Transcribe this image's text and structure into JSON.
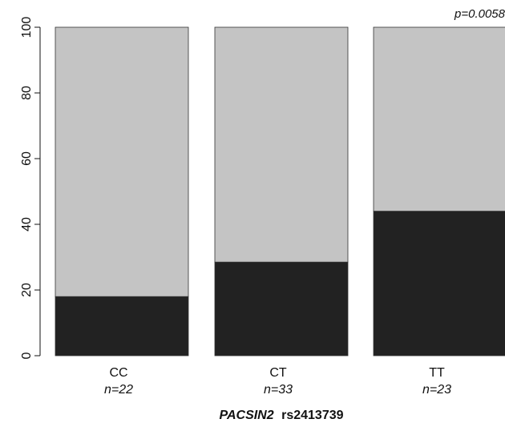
{
  "chart_data": {
    "type": "bar",
    "stacked": true,
    "title": "",
    "xlabel": "",
    "xlabel_gene": "PACSIN2",
    "xlabel_snp": "rs2413739",
    "ylabel": "",
    "ylim": [
      0,
      100
    ],
    "yticks": [
      0,
      20,
      40,
      60,
      80,
      100
    ],
    "grid": false,
    "annotation": "p=0.0058",
    "categories": [
      "CC",
      "CT",
      "TT"
    ],
    "n_labels": [
      "n=22",
      "n=33",
      "n=23"
    ],
    "series": [
      {
        "values": [
          18,
          28.5,
          44
        ],
        "color": "#222222"
      },
      {
        "values": [
          82,
          71.5,
          56
        ],
        "color": "#c4c4c4"
      }
    ]
  }
}
